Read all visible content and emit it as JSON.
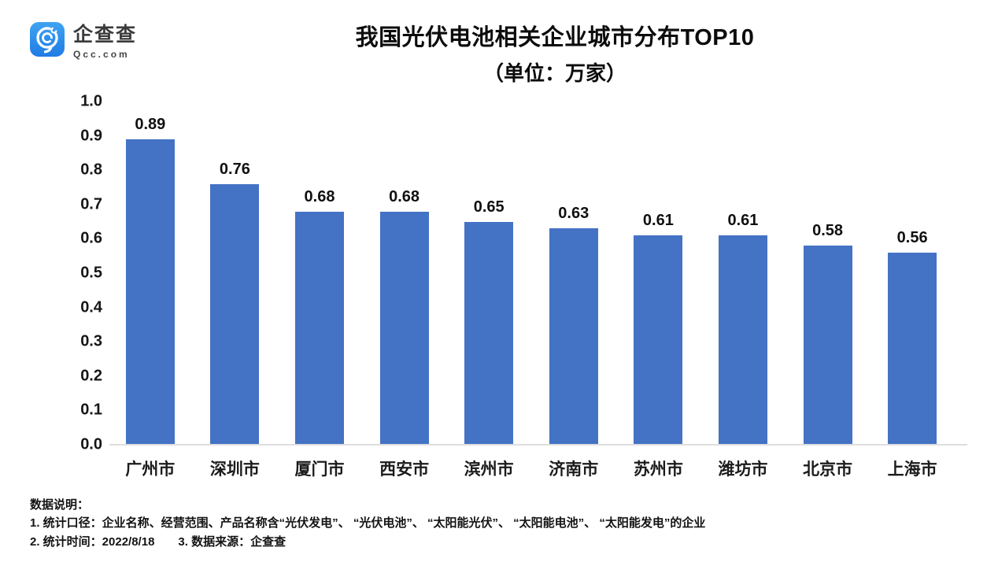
{
  "brand": {
    "name": "企查查",
    "domain": "Qcc.com",
    "logo_gradient_top": "#3FA3F2",
    "logo_gradient_bottom": "#1E7CE4"
  },
  "header": {
    "title": "我国光伏电池相关企业城市分布TOP10",
    "subtitle": "（单位：万家）"
  },
  "chart_data": {
    "type": "bar",
    "title": "我国光伏电池相关企业城市分布TOP10",
    "subtitle": "（单位：万家）",
    "unit": "万家",
    "categories": [
      "广州市",
      "深圳市",
      "厦门市",
      "西安市",
      "滨州市",
      "济南市",
      "苏州市",
      "潍坊市",
      "北京市",
      "上海市"
    ],
    "values": [
      0.89,
      0.76,
      0.68,
      0.68,
      0.65,
      0.63,
      0.61,
      0.61,
      0.58,
      0.56
    ],
    "value_labels": [
      "0.89",
      "0.76",
      "0.68",
      "0.68",
      "0.65",
      "0.63",
      "0.61",
      "0.61",
      "0.58",
      "0.56"
    ],
    "xlabel": "",
    "ylabel": "",
    "ylim": [
      0,
      1.0
    ],
    "yticks": [
      "1.0",
      "0.9",
      "0.8",
      "0.7",
      "0.6",
      "0.5",
      "0.4",
      "0.3",
      "0.2",
      "0.1",
      "0.0"
    ],
    "grid": false,
    "legend": null,
    "bar_color": "#4472C4",
    "axis_line_color": "#DEDEDE"
  },
  "footer": {
    "heading": "数据说明：",
    "note1": "1. 统计口径：企业名称、经营范围、产品名称含“光伏发电”、 “光伏电池”、 “太阳能光伏”、 “太阳能电池”、 “太阳能发电”的企业",
    "note2": "2. 统计时间：2022/8/18",
    "note3": "3. 数据来源：企查查"
  }
}
